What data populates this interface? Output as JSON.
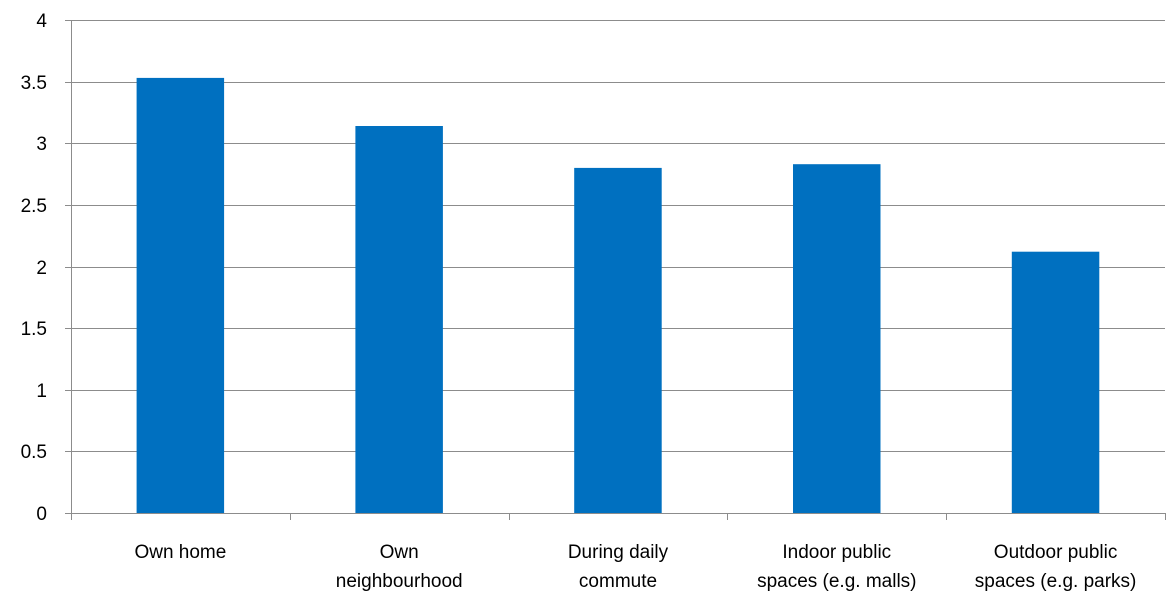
{
  "chart_data": {
    "type": "bar",
    "categories": [
      [
        "Own home"
      ],
      [
        "Own",
        "neighbourhood"
      ],
      [
        "During daily",
        "commute"
      ],
      [
        "Indoor public",
        "spaces (e.g. malls)"
      ],
      [
        "Outdoor public",
        "spaces (e.g. parks)"
      ]
    ],
    "values": [
      3.53,
      3.14,
      2.8,
      2.83,
      2.12
    ],
    "ylim": [
      0,
      4
    ],
    "yticks": [
      "0",
      "0.5",
      "1",
      "1.5",
      "2",
      "2.5",
      "3",
      "3.5",
      "4"
    ],
    "title": "",
    "xlabel": "",
    "ylabel": "",
    "grid": true,
    "legend": "none",
    "colors": {
      "bar": "#0070C0",
      "grid": "#8C8C8C",
      "axis": "#8C8C8C"
    }
  }
}
